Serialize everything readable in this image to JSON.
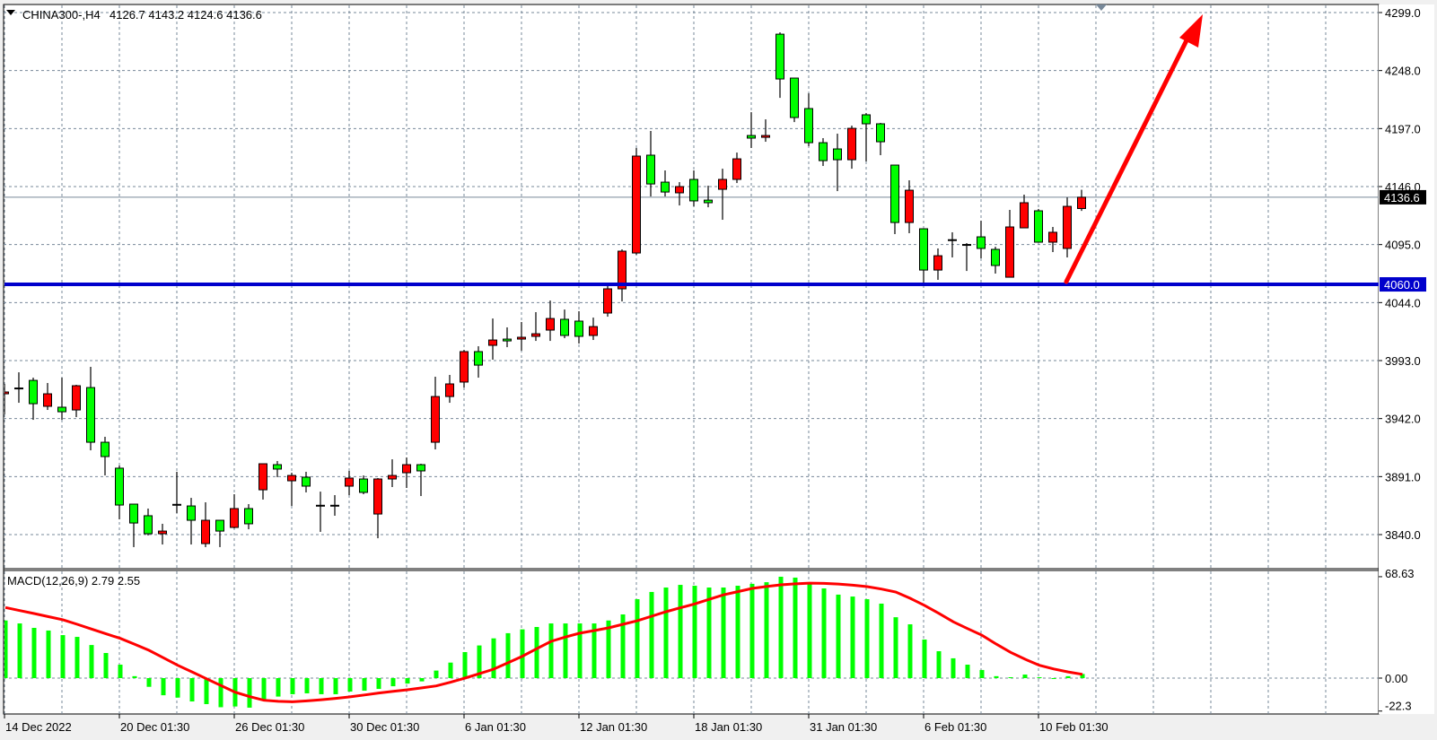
{
  "header": {
    "symbol_timeframe": "CHINA300-,H4",
    "ohlc_text": "4126.7 4143.2 4124.6 4136.6"
  },
  "colors": {
    "bull_candle": "#ff0000",
    "bear_candle": "#00ff00",
    "grid": "#778899",
    "support_line": "#0000cc",
    "arrow": "#ff0000",
    "macd_histogram": "#00ff00",
    "macd_signal": "#ff0000",
    "bid_line": "#778899"
  },
  "chart_data": [
    {
      "type": "candlestick",
      "title": "CHINA300-,H4",
      "ylim": [
        3820,
        4305
      ],
      "grid": true,
      "price_axis_labels": [
        "4299.0",
        "4248.0",
        "4197.0",
        "4146.0",
        "4095.0",
        "4044.0",
        "3993.0",
        "3942.0",
        "3891.0",
        "3840.0"
      ],
      "price_axis_values": [
        4299.0,
        4248.0,
        4197.0,
        4146.0,
        4095.0,
        4044.0,
        3993.0,
        3942.0,
        3891.0,
        3840.0
      ],
      "x_tick_labels": [
        "14 Dec 2022",
        "20 Dec 01:30",
        "26 Dec 01:30",
        "30 Dec 01:30",
        "6 Jan 01:30",
        "12 Jan 01:30",
        "18 Jan 01:30",
        "31 Jan 01:30",
        "6 Feb 01:30",
        "10 Feb 01:30"
      ],
      "current_price": 4136.6,
      "current_price_label": "4136.6",
      "horizontal_line": 4060.0,
      "horizontal_line_label": "4060.0",
      "annotation": "upward arrow from 4060 support",
      "ohlc": [
        [
          3963.8,
          3972.5,
          3945.7,
          3965.4
        ],
        [
          3967.0,
          3982.7,
          3955.9,
          3968.5
        ],
        [
          3975.6,
          3978.0,
          3940.9,
          3955.1
        ],
        [
          3952.8,
          3973.3,
          3949.6,
          3963.8
        ],
        [
          3952.0,
          3978.0,
          3940.9,
          3948.0
        ],
        [
          3949.6,
          3971.7,
          3943.3,
          3970.9
        ],
        [
          3969.3,
          3987.5,
          3914.1,
          3921.2
        ],
        [
          3921.2,
          3926.0,
          3892.0,
          3908.6
        ],
        [
          3898.4,
          3900.7,
          3853.4,
          3866.0
        ],
        [
          3866.8,
          3866.8,
          3829.0,
          3850.2
        ],
        [
          3856.6,
          3862.9,
          3839.2,
          3840.8
        ],
        [
          3840.8,
          3849.5,
          3831.3,
          3843.1
        ],
        [
          3866.0,
          3895.2,
          3858.9,
          3866.2
        ],
        [
          3865.2,
          3872.3,
          3831.3,
          3852.6
        ],
        [
          3832.1,
          3868.4,
          3829.0,
          3852.6
        ],
        [
          3852.6,
          3852.6,
          3829.0,
          3843.1
        ],
        [
          3846.3,
          3875.5,
          3845.5,
          3862.9
        ],
        [
          3862.9,
          3866.8,
          3844.7,
          3849.5
        ],
        [
          3879.4,
          3902.3,
          3870.8,
          3902.3
        ],
        [
          3901.5,
          3904.7,
          3890.5,
          3897.6
        ],
        [
          3887.3,
          3894.4,
          3865.2,
          3892.0
        ],
        [
          3890.5,
          3895.2,
          3877.1,
          3882.6
        ],
        [
          3865.2,
          3877.8,
          3842.4,
          3865.4
        ],
        [
          3865.2,
          3874.7,
          3856.6,
          3865.4
        ],
        [
          3882.6,
          3896.0,
          3874.7,
          3889.7
        ],
        [
          3888.9,
          3892.0,
          3875.5,
          3877.1
        ],
        [
          3858.1,
          3889.7,
          3836.8,
          3888.9
        ],
        [
          3888.9,
          3906.2,
          3881.8,
          3892.0
        ],
        [
          3894.4,
          3907.8,
          3881.0,
          3901.5
        ],
        [
          3901.5,
          3902.3,
          3873.9,
          3896.0
        ],
        [
          3921.2,
          3978.8,
          3914.9,
          3961.4
        ],
        [
          3961.4,
          3980.4,
          3955.9,
          3972.5
        ],
        [
          3974.1,
          4002.4,
          3969.3,
          4000.9
        ],
        [
          4000.9,
          4005.6,
          3978.0,
          3989.0
        ],
        [
          4006.4,
          4030.0,
          3993.8,
          4011.1
        ],
        [
          4011.9,
          4022.2,
          4004.8,
          4010.3
        ],
        [
          4011.9,
          4026.9,
          4001.7,
          4013.5
        ],
        [
          4014.3,
          4035.6,
          4010.3,
          4016.6
        ],
        [
          4019.8,
          4045.8,
          4010.3,
          4030.0
        ],
        [
          4029.3,
          4037.9,
          4012.7,
          4015.1
        ],
        [
          4027.7,
          4036.4,
          4008.0,
          4014.3
        ],
        [
          4015.1,
          4030.8,
          4011.1,
          4022.9
        ],
        [
          4034.8,
          4059.2,
          4031.6,
          4056.1
        ],
        [
          4056.1,
          4090.8,
          4045.0,
          4089.2
        ],
        [
          4087.6,
          4179.9,
          4086.0,
          4172.8
        ],
        [
          4173.6,
          4194.9,
          4137.3,
          4148.3
        ],
        [
          4149.9,
          4160.2,
          4137.3,
          4141.2
        ],
        [
          4140.5,
          4149.9,
          4129.4,
          4146.0
        ],
        [
          4152.3,
          4160.2,
          4128.6,
          4133.4
        ],
        [
          4134.1,
          4146.8,
          4127.8,
          4131.8
        ],
        [
          4143.6,
          4161.7,
          4116.8,
          4152.3
        ],
        [
          4152.3,
          4175.9,
          4149.1,
          4170.4
        ],
        [
          4190.9,
          4211.4,
          4179.9,
          4188.6
        ],
        [
          4189.3,
          4205.1,
          4185.4,
          4190.9
        ],
        [
          4280.0,
          4281.6,
          4224.0,
          4240.6
        ],
        [
          4241.4,
          4241.4,
          4202.7,
          4206.7
        ],
        [
          4214.6,
          4228.0,
          4181.5,
          4184.6
        ],
        [
          4184.6,
          4188.6,
          4164.1,
          4168.8
        ],
        [
          4179.1,
          4192.5,
          4142.0,
          4169.6
        ],
        [
          4169.6,
          4199.6,
          4161.7,
          4197.2
        ],
        [
          4209.1,
          4210.6,
          4168.1,
          4201.2
        ],
        [
          4201.2,
          4202.0,
          4173.6,
          4185.4
        ],
        [
          4164.9,
          4164.9,
          4104.2,
          4114.4
        ],
        [
          4114.4,
          4151.5,
          4105.0,
          4142.8
        ],
        [
          4108.9,
          4108.9,
          4061.6,
          4072.6
        ],
        [
          4072.6,
          4091.6,
          4064.0,
          4085.2
        ],
        [
          4098.7,
          4105.8,
          4083.7,
          4098.9
        ],
        [
          4094.7,
          4096.3,
          4071.8,
          4093.9
        ],
        [
          4101.8,
          4116.0,
          4082.9,
          4091.6
        ],
        [
          4090.8,
          4093.1,
          4069.5,
          4076.6
        ],
        [
          4066.3,
          4125.5,
          4066.3,
          4110.5
        ],
        [
          4109.7,
          4138.9,
          4109.7,
          4131.8
        ],
        [
          4124.7,
          4126.3,
          4097.1,
          4097.1
        ],
        [
          4097.1,
          4110.5,
          4088.4,
          4105.8
        ],
        [
          4091.6,
          4136.5,
          4083.7,
          4128.6
        ],
        [
          4126.7,
          4143.2,
          4124.6,
          4136.6
        ]
      ]
    },
    {
      "type": "bar+line",
      "title": "MACD(12,26,9) 2.79 2.55",
      "ylim": [
        -22.3,
        68.63
      ],
      "axis_labels": [
        "68.63",
        "0.00",
        "-22.3"
      ],
      "axis_values": [
        68.63,
        0.0,
        -22.3
      ],
      "series": [
        {
          "name": "MACD",
          "type": "bar",
          "values": [
            39.0,
            37.0,
            34.0,
            32.2,
            29.1,
            27.9,
            22.4,
            17.0,
            9.1,
            1.3,
            -5.9,
            -11.6,
            -13.2,
            -15.8,
            -17.6,
            -19.7,
            -19.2,
            -20.0,
            -14.9,
            -12.5,
            -10.9,
            -10.3,
            -10.9,
            -10.9,
            -9.1,
            -8.5,
            -7.3,
            -5.5,
            -3.7,
            -2.2,
            5.1,
            10.5,
            17.6,
            22.1,
            26.9,
            30.4,
            33.0,
            34.6,
            37.0,
            37.0,
            37.0,
            37.0,
            39.0,
            43.1,
            53.4,
            58.3,
            61.3,
            63.1,
            62.5,
            61.3,
            61.3,
            62.5,
            63.8,
            64.9,
            68.6,
            68.0,
            63.8,
            60.7,
            56.5,
            55.2,
            53.4,
            50.4,
            41.2,
            36.4,
            26.1,
            18.2,
            13.4,
            9.1,
            5.5,
            1.3,
            0.6,
            2.4,
            0.6,
            -0.6,
            1.3,
            2.79
          ]
        },
        {
          "name": "Signal",
          "type": "line",
          "values": [
            47.8,
            45.7,
            43.7,
            41.6,
            39.5,
            36.4,
            33.2,
            30.0,
            26.9,
            22.9,
            18.8,
            13.8,
            8.7,
            4.2,
            -0.4,
            -5.0,
            -9.5,
            -12.5,
            -15.0,
            -15.7,
            -16.0,
            -15.4,
            -14.6,
            -13.7,
            -12.7,
            -11.4,
            -10.1,
            -9.0,
            -7.9,
            -6.6,
            -5.3,
            -2.8,
            0.0,
            3.0,
            6.1,
            10.4,
            14.8,
            19.9,
            24.9,
            27.8,
            30.4,
            32.2,
            34.0,
            36.4,
            38.8,
            41.9,
            44.9,
            47.6,
            50.2,
            53.3,
            56.3,
            58.5,
            60.7,
            62.0,
            63.1,
            63.8,
            64.3,
            64.1,
            63.7,
            62.9,
            61.9,
            60.3,
            58.3,
            54.0,
            49.2,
            43.8,
            38.1,
            33.5,
            29.0,
            23.0,
            17.4,
            12.8,
            8.7,
            6.2,
            4.2,
            2.55
          ]
        }
      ]
    }
  ]
}
